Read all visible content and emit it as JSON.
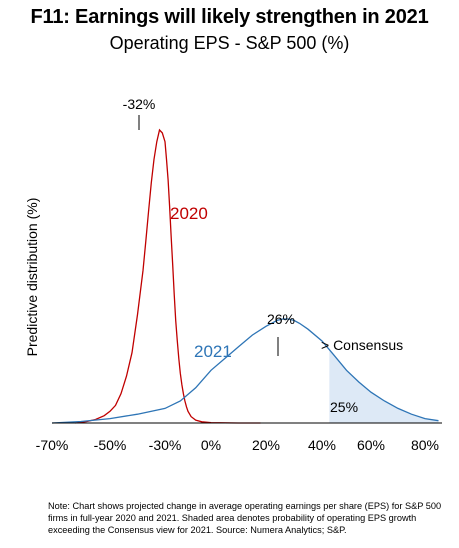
{
  "header": {
    "title": "F11: Earnings will likely strengthen in 2021",
    "subtitle": "Operating EPS - S&P 500 (%)"
  },
  "footer": {
    "note": "Note: Chart shows projected change in average operating earnings per share (EPS) for S&P 500 firms in full-year 2020 and 2021. Shaded area denotes probability of operating EPS growth exceeding the Consensus view for 2021. Source: Numera Analytics; S&P."
  },
  "chart_data": {
    "type": "line",
    "title": "F11: Earnings will likely strengthen in 2021",
    "subtitle": "Operating EPS - S&P 500 (%)",
    "xlabel": "",
    "ylabel": "Predictive distribution (%)",
    "xlim": [
      -70,
      85
    ],
    "ylim": [
      0,
      1.05
    ],
    "x_ticks": [
      -70,
      -50,
      -30,
      0,
      20,
      40,
      60,
      80
    ],
    "x_tick_labels": [
      "-70%",
      "-50%",
      "-30%",
      "0%",
      "20%",
      "40%",
      "60%",
      "80%"
    ],
    "grid": false,
    "series": [
      {
        "name": "2020",
        "color": "#c00000",
        "peak_label": "-32%",
        "x": [
          -62,
          -58,
          -55,
          -52,
          -50,
          -48,
          -46,
          -44,
          -42,
          -40,
          -38,
          -37,
          -36,
          -35,
          -34,
          -33,
          -32,
          -31,
          -30,
          -29,
          -28,
          -27,
          -26,
          -25,
          -24,
          -23,
          -22,
          -21,
          -20,
          -19,
          -18,
          -17,
          -16,
          -15,
          -13,
          -10,
          -6,
          0,
          10,
          18
        ],
        "y": [
          0.0,
          0.005,
          0.012,
          0.025,
          0.04,
          0.06,
          0.1,
          0.16,
          0.24,
          0.37,
          0.52,
          0.62,
          0.72,
          0.82,
          0.9,
          0.96,
          1.0,
          0.99,
          0.96,
          0.9,
          0.83,
          0.74,
          0.64,
          0.54,
          0.44,
          0.35,
          0.28,
          0.22,
          0.17,
          0.13,
          0.1,
          0.075,
          0.055,
          0.04,
          0.022,
          0.01,
          0.004,
          0.001,
          0.0,
          0.0
        ]
      },
      {
        "name": "2021",
        "color": "#2e75b6",
        "peak_label": "26%",
        "x": [
          -70,
          -60,
          -50,
          -40,
          -30,
          -20,
          -10,
          0,
          5,
          10,
          15,
          20,
          24,
          26,
          28,
          30,
          32,
          35,
          40,
          45,
          50,
          55,
          60,
          65,
          70,
          75,
          80,
          85
        ],
        "y": [
          0.0,
          0.005,
          0.015,
          0.03,
          0.05,
          0.075,
          0.12,
          0.18,
          0.22,
          0.26,
          0.3,
          0.33,
          0.35,
          0.355,
          0.355,
          0.35,
          0.34,
          0.32,
          0.28,
          0.23,
          0.18,
          0.14,
          0.105,
          0.075,
          0.05,
          0.03,
          0.015,
          0.008
        ]
      }
    ],
    "shaded_region": {
      "series": "2021",
      "x_from": 43,
      "label": "> Consensus",
      "value_label": "25%",
      "color": "#dde9f6"
    }
  }
}
